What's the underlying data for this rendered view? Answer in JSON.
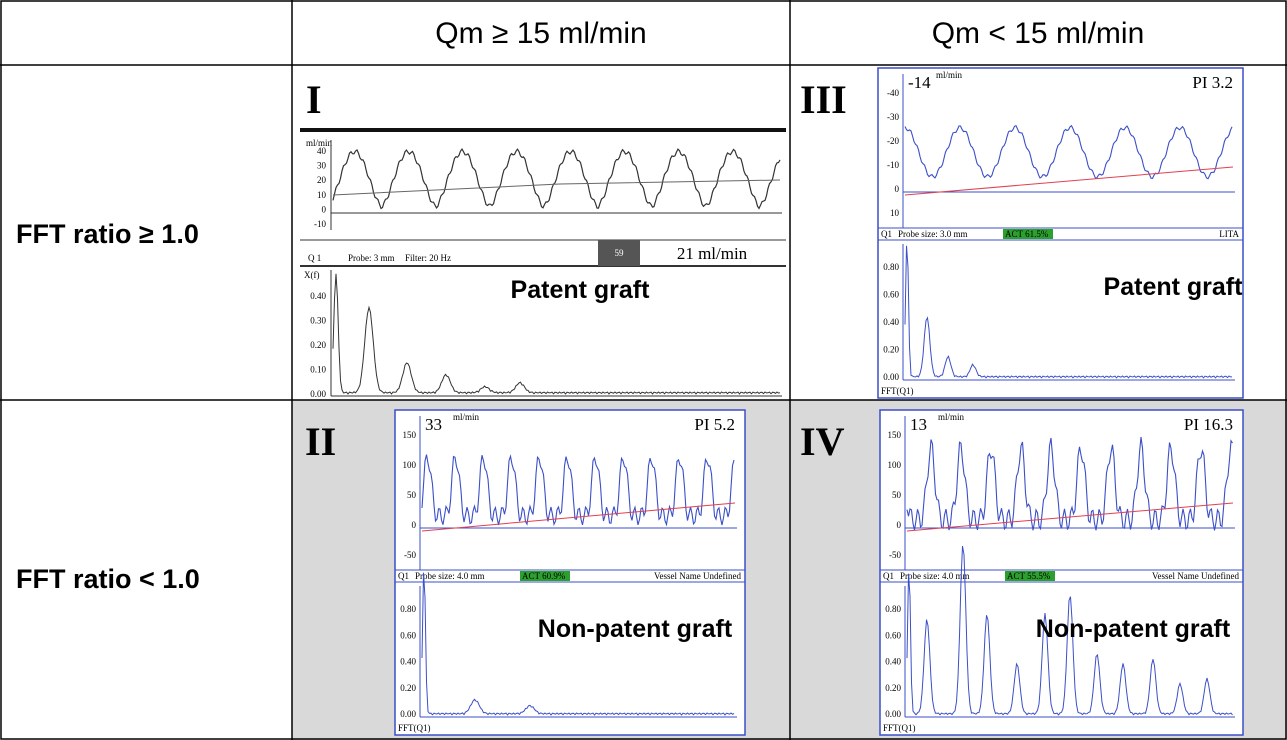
{
  "table": {
    "header": [
      "Qm ≥ 15 ml/min",
      "Qm < 15 ml/min"
    ],
    "rows": [
      "FFT ratio ≥ 1.0",
      "FFT ratio < 1.0"
    ]
  },
  "panels": [
    {
      "numeral": "I",
      "caption": "Patent graft",
      "flow_unit": "ml/min",
      "flow_ticks": [
        "40",
        "30",
        "20",
        "10",
        "0",
        "-10"
      ],
      "status": [
        "Q 1",
        "Probe:  3 mm",
        "Filter:  20 Hz"
      ],
      "box": "59",
      "readout": "21 ml/min",
      "fft_label": "X(f)",
      "fft_ticks": [
        "0.40",
        "0.30",
        "0.20",
        "0.10",
        "0.00"
      ]
    },
    {
      "numeral": "III",
      "caption": "Patent graft",
      "readout": "-14",
      "flow_unit": "ml/min",
      "pi": "PI  3.2",
      "flow_ticks": [
        "-40",
        "-30",
        "-20",
        "-10",
        "0",
        "10"
      ],
      "status": [
        "Q1",
        "Probe size: 3.0 mm",
        "ACT 61.5%",
        "LITA"
      ],
      "fft_ticks": [
        "0.80",
        "0.60",
        "0.40",
        "0.20",
        "0.00"
      ],
      "fft_label": "FFT(Q1)"
    },
    {
      "numeral": "II",
      "caption": "Non-patent graft",
      "readout": "33",
      "flow_unit": "ml/min",
      "pi": "PI  5.2",
      "flow_ticks": [
        "150",
        "100",
        "50",
        "0",
        "-50"
      ],
      "status": [
        "Q1",
        "Probe size: 4.0 mm",
        "ACT 60.9%",
        "Vessel Name Undefined"
      ],
      "fft_ticks": [
        "0.80",
        "0.60",
        "0.40",
        "0.20",
        "0.00"
      ],
      "fft_label": "FFT(Q1)"
    },
    {
      "numeral": "IV",
      "caption": "Non-patent graft",
      "readout": "13",
      "flow_unit": "ml/min",
      "pi": "PI 16.3",
      "flow_ticks": [
        "150",
        "100",
        "50",
        "0",
        "-50"
      ],
      "status": [
        "Q1",
        "Probe size: 4.0 mm",
        "ACT 55.5%",
        "Vessel Name Undefined"
      ],
      "fft_ticks": [
        "0.80",
        "0.60",
        "0.40",
        "0.20",
        "0.00"
      ],
      "fft_label": "FFT(Q1)"
    }
  ]
}
